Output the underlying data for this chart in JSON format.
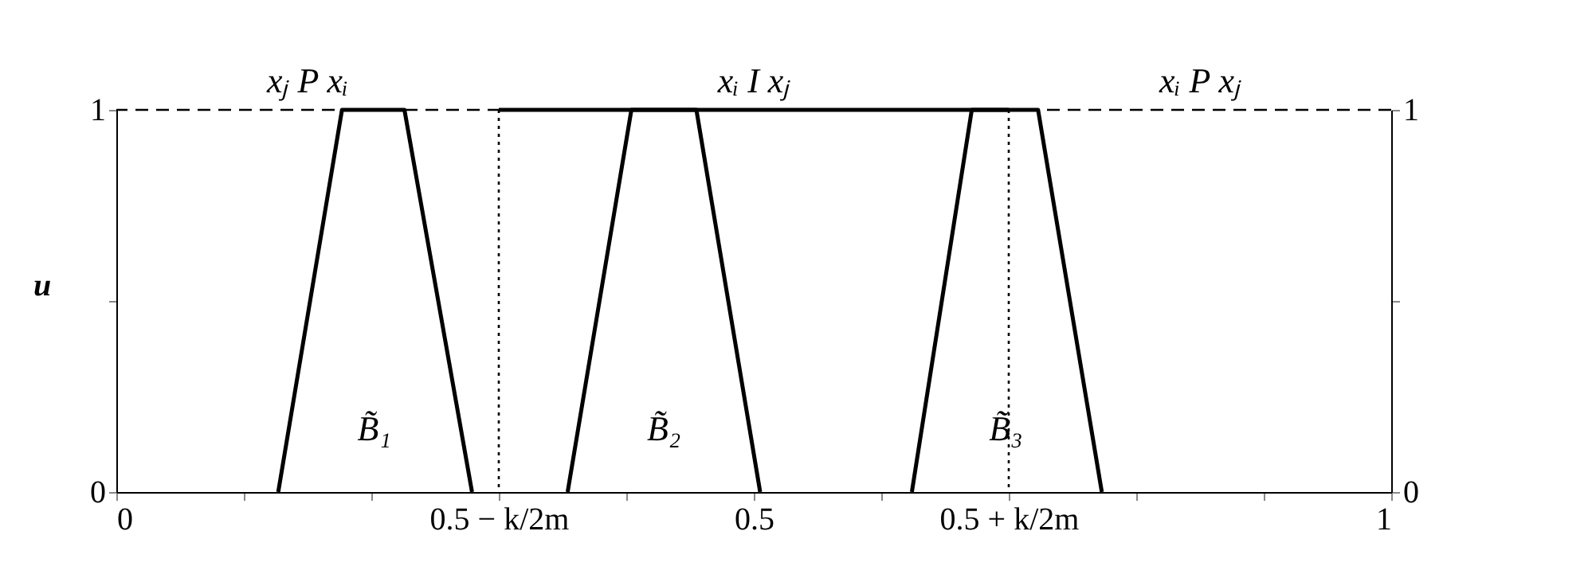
{
  "chart_data": {
    "type": "line",
    "ylabel": "u",
    "xlim": [
      0,
      1
    ],
    "ylim": [
      0,
      1
    ],
    "y2lim": [
      0,
      1
    ],
    "xticks": [
      0,
      {
        "value": 0.1,
        "label": null
      },
      {
        "value": 0.2,
        "label": null
      },
      {
        "value": 0.3,
        "label": "0.5 − k/2m"
      },
      {
        "value": 0.4,
        "label": null
      },
      0.5,
      {
        "value": 0.6,
        "label": null
      },
      {
        "value": 0.7,
        "label": "0.5 + k/2m"
      },
      {
        "value": 0.8,
        "label": null
      },
      {
        "value": 0.9,
        "label": null
      },
      1
    ],
    "yticks": [
      0,
      {
        "value": 0.5,
        "label": null
      },
      1
    ],
    "y2ticks": [
      0,
      {
        "value": 0.5,
        "label": null
      },
      1
    ],
    "grid": false,
    "series": [
      {
        "color": "#000000",
        "x": [
          0.127,
          0.177,
          0.226,
          0.279
        ],
        "values": [
          0,
          1,
          1,
          0
        ]
      },
      {
        "color": "#000000",
        "x": [
          0.354,
          0.404,
          0.455,
          0.505
        ],
        "values": [
          0,
          1,
          1,
          0
        ]
      },
      {
        "color": "#000000",
        "x": [
          0.624,
          0.671,
          0.723,
          0.773
        ],
        "values": [
          0,
          1,
          1,
          0
        ]
      },
      {
        "color": "#000000",
        "x": [
          0.3,
          0.7
        ],
        "values": [
          1,
          1
        ]
      }
    ],
    "ref_lines": [
      {
        "axis": "y",
        "value": 1,
        "line_style": "dashed",
        "color": "#000000"
      },
      {
        "axis": "x",
        "value": 0.3,
        "line_style": "dotted",
        "color": "#000000"
      },
      {
        "axis": "x",
        "value": 0.7,
        "line_style": "dotted",
        "color": "#000000"
      }
    ],
    "annotations": [
      "xⱼ P xᵢ",
      "xᵢ I xⱼ",
      "xᵢ P xⱼ",
      "B̃₁",
      "B̃₂",
      "B̃₃"
    ]
  }
}
